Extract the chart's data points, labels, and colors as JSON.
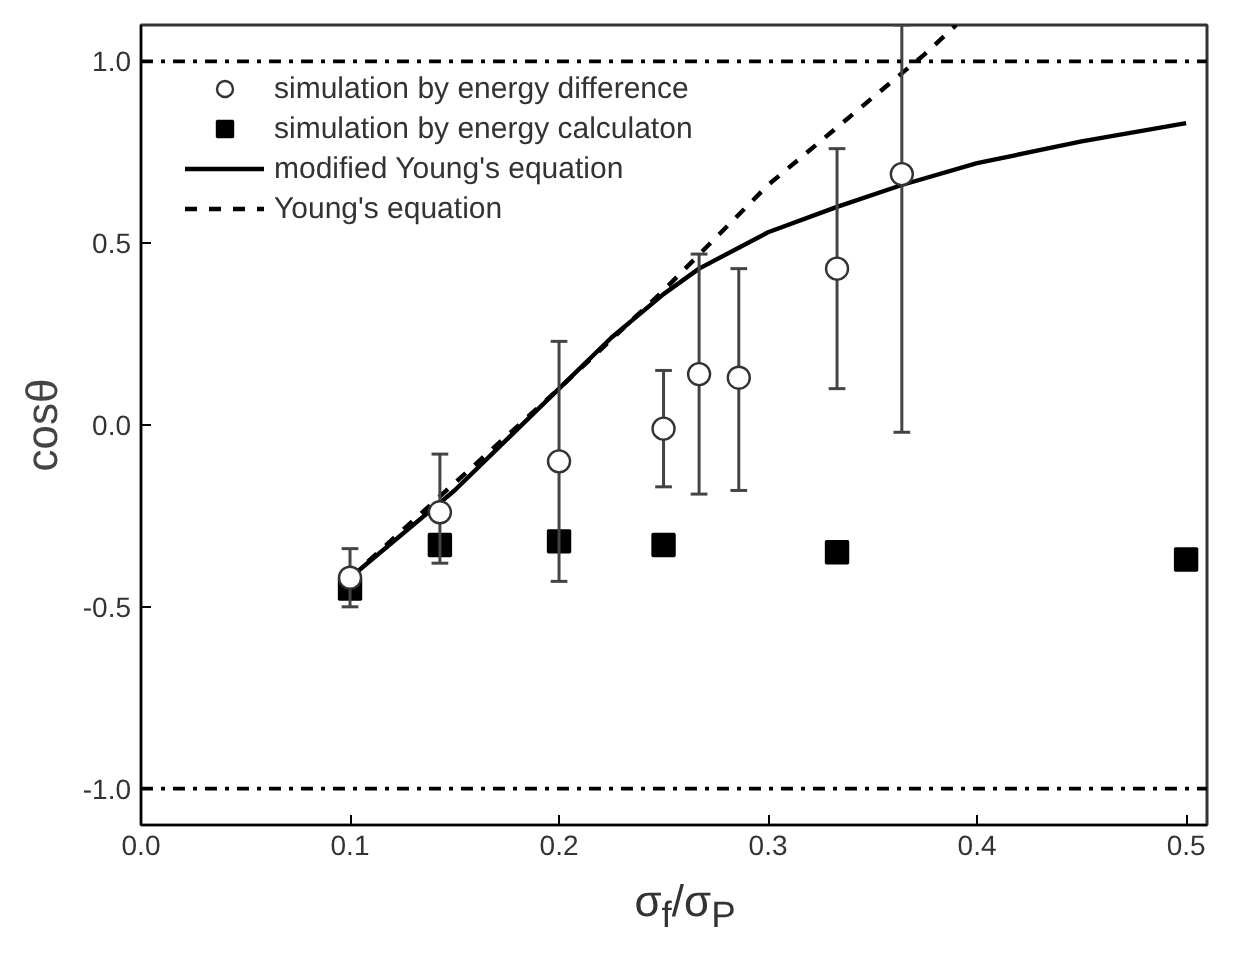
{
  "chart_data": {
    "type": "scatter",
    "xlabel": "σ$_{f}$/σ$_{P}$",
    "ylabel": "cosθ",
    "xlim": [
      0.0,
      0.51
    ],
    "ylim": [
      -1.1,
      1.1
    ],
    "xticks": [
      {
        "value": 0.0,
        "label": "0.0"
      },
      {
        "value": 0.1,
        "label": "0.1"
      },
      {
        "value": 0.2,
        "label": "0.2"
      },
      {
        "value": 0.3,
        "label": "0.3"
      },
      {
        "value": 0.4,
        "label": "0.4"
      },
      {
        "value": 0.5,
        "label": "0.5"
      }
    ],
    "yticks": [
      {
        "value": -1.0,
        "label": "-1.0"
      },
      {
        "value": -0.5,
        "label": "-0.5"
      },
      {
        "value": 0.0,
        "label": "0.0"
      },
      {
        "value": 0.5,
        "label": "0.5"
      },
      {
        "value": 1.0,
        "label": "1.0"
      }
    ],
    "grid": false,
    "legend": "top left",
    "series": [
      {
        "name": "simulation by energy difference",
        "marker": "circle",
        "color": "#ffffff",
        "x": [
          0.1,
          0.143,
          0.2,
          0.25,
          0.267,
          0.286,
          0.333,
          0.364
        ],
        "values": [
          -0.42,
          -0.24,
          -0.1,
          -0.01,
          0.14,
          0.13,
          0.43,
          0.69
        ],
        "errors": [
          [
            -0.5,
            -0.34
          ],
          [
            -0.38,
            -0.08
          ],
          [
            -0.43,
            0.23
          ],
          [
            -0.17,
            0.15
          ],
          [
            -0.19,
            0.47
          ],
          [
            -0.18,
            0.43
          ],
          [
            0.1,
            0.76
          ],
          [
            -0.02,
            1.1
          ]
        ]
      },
      {
        "name": "simulation by energy calculaton",
        "marker": "square",
        "color": "#000000",
        "x": [
          0.1,
          0.143,
          0.2,
          0.25,
          0.333,
          0.5
        ],
        "values": [
          -0.45,
          -0.33,
          -0.32,
          -0.33,
          -0.35,
          -0.37
        ]
      },
      {
        "name": "modified Young's equation",
        "type": "line",
        "line_style": "solid",
        "color": "#000000",
        "x": [
          0.1,
          0.15,
          0.2,
          0.225,
          0.25,
          0.267,
          0.3,
          0.333,
          0.364,
          0.4,
          0.45,
          0.5
        ],
        "values": [
          -0.42,
          -0.18,
          0.1,
          0.24,
          0.36,
          0.43,
          0.53,
          0.6,
          0.66,
          0.72,
          0.78,
          0.83
        ]
      },
      {
        "name": "Young's equation",
        "type": "line",
        "line_style": "dashed",
        "color": "#000000",
        "x": [
          0.1,
          0.2,
          0.25,
          0.3,
          0.35,
          0.375,
          0.39
        ],
        "values": [
          -0.42,
          0.1,
          0.37,
          0.66,
          0.9,
          1.02,
          1.1
        ]
      }
    ],
    "ref_lines": [
      {
        "axis": "y",
        "value": 1.0,
        "line_style": "dashdot",
        "color": "#000000"
      },
      {
        "axis": "y",
        "value": -1.0,
        "line_style": "dashdot",
        "color": "#000000"
      }
    ]
  }
}
